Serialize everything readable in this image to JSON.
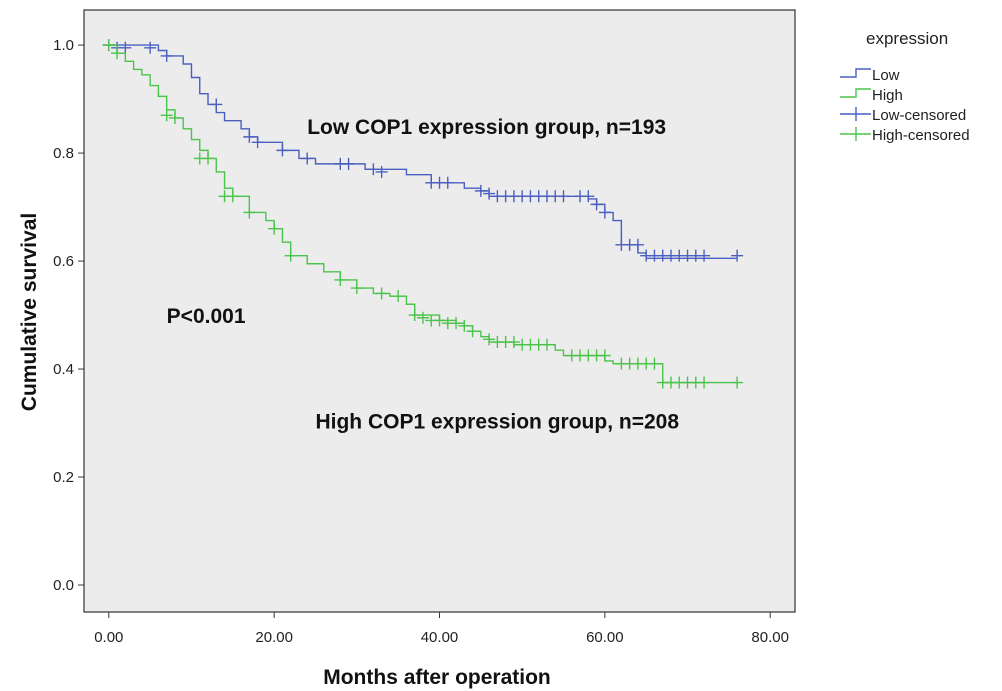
{
  "chart_data": {
    "type": "line",
    "xlabel": "Months after operation",
    "ylabel": "Cumulative survival",
    "xlim": [
      -3,
      83
    ],
    "ylim": [
      -0.05,
      1.065
    ],
    "x_ticks": [
      0,
      20,
      40,
      60,
      80
    ],
    "x_tick_labels": [
      "0.00",
      "20.00",
      "40.00",
      "60.00",
      "80.00"
    ],
    "y_ticks": [
      0.0,
      0.2,
      0.4,
      0.6,
      0.8,
      1.0
    ],
    "y_tick_labels": [
      "0.0",
      "0.2",
      "0.4",
      "0.6",
      "0.8",
      "1.0"
    ],
    "grid": false,
    "background": "#ececec",
    "legend": {
      "title": "expression",
      "placement": "outside-right",
      "entries": [
        {
          "label": "Low",
          "color": "#4a5fc0",
          "kind": "line"
        },
        {
          "label": "High",
          "color": "#4bc44b",
          "kind": "line"
        },
        {
          "label": "Low-censored",
          "color": "#4a5fc0",
          "kind": "censor"
        },
        {
          "label": "High-censored",
          "color": "#4bc44b",
          "kind": "censor"
        }
      ]
    },
    "annotations": [
      {
        "text": "Low COP1 expression group, n=193",
        "x": 24,
        "y": 0.835
      },
      {
        "text": "High COP1 expression group, n=208",
        "x": 25,
        "y": 0.29
      },
      {
        "text": "P<0.001",
        "x": 7,
        "y": 0.485
      }
    ],
    "series": [
      {
        "name": "Low",
        "color": "#4a5fc0",
        "steps": [
          [
            0,
            1.0
          ],
          [
            6,
            0.99
          ],
          [
            7,
            0.98
          ],
          [
            9,
            0.965
          ],
          [
            10,
            0.94
          ],
          [
            11,
            0.91
          ],
          [
            12,
            0.89
          ],
          [
            13,
            0.875
          ],
          [
            14,
            0.86
          ],
          [
            16,
            0.845
          ],
          [
            17,
            0.83
          ],
          [
            18,
            0.82
          ],
          [
            21,
            0.805
          ],
          [
            23,
            0.79
          ],
          [
            25,
            0.78
          ],
          [
            31,
            0.77
          ],
          [
            36,
            0.76
          ],
          [
            39,
            0.745
          ],
          [
            43,
            0.735
          ],
          [
            45,
            0.73
          ],
          [
            46,
            0.72
          ],
          [
            58,
            0.715
          ],
          [
            59,
            0.705
          ],
          [
            60,
            0.69
          ],
          [
            61,
            0.675
          ],
          [
            62,
            0.63
          ],
          [
            64,
            0.615
          ],
          [
            65,
            0.605
          ]
        ],
        "end_x": 76,
        "censored": [
          [
            0,
            1.0
          ],
          [
            1,
            0.995
          ],
          [
            2,
            0.995
          ],
          [
            5,
            0.995
          ],
          [
            7,
            0.98
          ],
          [
            13,
            0.89
          ],
          [
            17,
            0.83
          ],
          [
            18,
            0.82
          ],
          [
            21,
            0.805
          ],
          [
            24,
            0.79
          ],
          [
            28,
            0.78
          ],
          [
            29,
            0.78
          ],
          [
            32,
            0.77
          ],
          [
            33,
            0.765
          ],
          [
            39,
            0.745
          ],
          [
            40,
            0.745
          ],
          [
            41,
            0.745
          ],
          [
            45,
            0.73
          ],
          [
            46,
            0.725
          ],
          [
            47,
            0.72
          ],
          [
            48,
            0.72
          ],
          [
            49,
            0.72
          ],
          [
            50,
            0.72
          ],
          [
            51,
            0.72
          ],
          [
            52,
            0.72
          ],
          [
            53,
            0.72
          ],
          [
            54,
            0.72
          ],
          [
            55,
            0.72
          ],
          [
            57,
            0.72
          ],
          [
            58,
            0.72
          ],
          [
            59,
            0.705
          ],
          [
            60,
            0.69
          ],
          [
            62,
            0.63
          ],
          [
            63,
            0.63
          ],
          [
            64,
            0.63
          ],
          [
            65,
            0.61
          ],
          [
            66,
            0.61
          ],
          [
            67,
            0.61
          ],
          [
            68,
            0.61
          ],
          [
            69,
            0.61
          ],
          [
            70,
            0.61
          ],
          [
            71,
            0.61
          ],
          [
            72,
            0.61
          ],
          [
            76,
            0.61
          ]
        ]
      },
      {
        "name": "High",
        "color": "#4bc44b",
        "steps": [
          [
            0,
            1.0
          ],
          [
            1,
            0.985
          ],
          [
            2,
            0.97
          ],
          [
            3,
            0.955
          ],
          [
            4,
            0.945
          ],
          [
            5,
            0.925
          ],
          [
            6,
            0.905
          ],
          [
            7,
            0.88
          ],
          [
            8,
            0.865
          ],
          [
            9,
            0.845
          ],
          [
            10,
            0.825
          ],
          [
            11,
            0.805
          ],
          [
            12,
            0.79
          ],
          [
            13,
            0.765
          ],
          [
            14,
            0.735
          ],
          [
            15,
            0.72
          ],
          [
            17,
            0.69
          ],
          [
            19,
            0.675
          ],
          [
            20,
            0.66
          ],
          [
            21,
            0.635
          ],
          [
            22,
            0.61
          ],
          [
            24,
            0.595
          ],
          [
            26,
            0.58
          ],
          [
            28,
            0.565
          ],
          [
            30,
            0.55
          ],
          [
            32,
            0.54
          ],
          [
            34,
            0.535
          ],
          [
            36,
            0.52
          ],
          [
            37,
            0.5
          ],
          [
            40,
            0.49
          ],
          [
            42,
            0.485
          ],
          [
            43,
            0.48
          ],
          [
            44,
            0.47
          ],
          [
            45,
            0.46
          ],
          [
            46,
            0.45
          ],
          [
            49,
            0.445
          ],
          [
            54,
            0.435
          ],
          [
            55,
            0.425
          ],
          [
            60,
            0.415
          ],
          [
            61,
            0.41
          ],
          [
            67,
            0.375
          ]
        ],
        "end_x": 76,
        "censored": [
          [
            0,
            1.0
          ],
          [
            1,
            0.985
          ],
          [
            7,
            0.87
          ],
          [
            8,
            0.865
          ],
          [
            11,
            0.79
          ],
          [
            12,
            0.79
          ],
          [
            14,
            0.72
          ],
          [
            15,
            0.72
          ],
          [
            17,
            0.69
          ],
          [
            20,
            0.66
          ],
          [
            22,
            0.61
          ],
          [
            28,
            0.565
          ],
          [
            30,
            0.55
          ],
          [
            33,
            0.54
          ],
          [
            35,
            0.535
          ],
          [
            37,
            0.5
          ],
          [
            38,
            0.495
          ],
          [
            39,
            0.49
          ],
          [
            40,
            0.49
          ],
          [
            41,
            0.485
          ],
          [
            42,
            0.485
          ],
          [
            43,
            0.48
          ],
          [
            44,
            0.47
          ],
          [
            46,
            0.455
          ],
          [
            47,
            0.45
          ],
          [
            48,
            0.45
          ],
          [
            49,
            0.45
          ],
          [
            50,
            0.445
          ],
          [
            51,
            0.445
          ],
          [
            52,
            0.445
          ],
          [
            53,
            0.445
          ],
          [
            56,
            0.425
          ],
          [
            57,
            0.425
          ],
          [
            58,
            0.425
          ],
          [
            59,
            0.425
          ],
          [
            60,
            0.425
          ],
          [
            62,
            0.41
          ],
          [
            63,
            0.41
          ],
          [
            64,
            0.41
          ],
          [
            65,
            0.41
          ],
          [
            66,
            0.41
          ],
          [
            67,
            0.375
          ],
          [
            68,
            0.375
          ],
          [
            69,
            0.375
          ],
          [
            70,
            0.375
          ],
          [
            71,
            0.375
          ],
          [
            72,
            0.375
          ],
          [
            76,
            0.375
          ]
        ]
      }
    ]
  }
}
